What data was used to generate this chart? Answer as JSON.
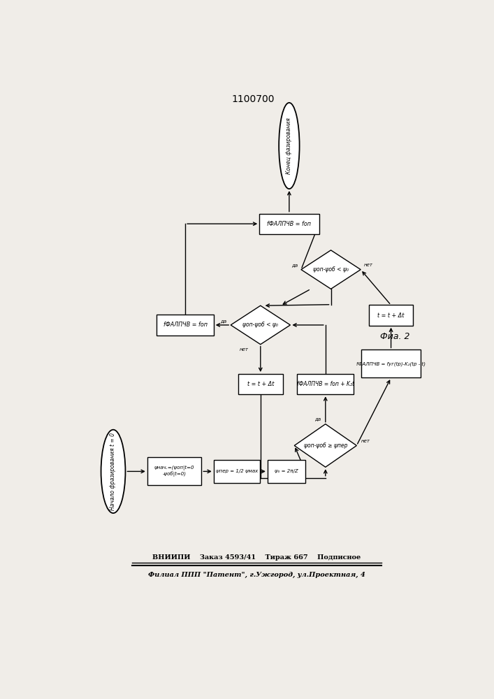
{
  "title": "1100700",
  "fig2_label": "Фиа. 2",
  "bottom_line1": "ВНИИПИ    Заказ 4593/41    Тираж 667    Подписное",
  "bottom_line2": "Филиал ППП \"Патент\", г.Ужгород, ул.Проектная, 4",
  "bg_color": "#f0ede8",
  "lw": 1.0,
  "fc": "white",
  "ec": "black"
}
